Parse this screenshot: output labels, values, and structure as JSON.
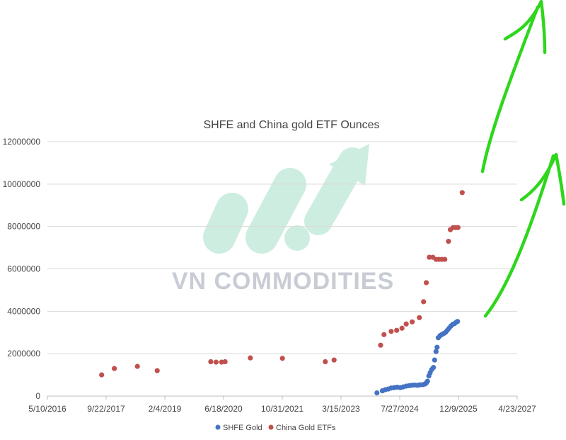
{
  "chart_data": {
    "type": "scatter",
    "title": "SHFE and China gold ETF Ounces",
    "xlabel": "",
    "ylabel": "",
    "xlim": [
      "2016-05-10",
      "2027-04-23"
    ],
    "ylim": [
      0,
      12000000
    ],
    "x_tick_labels": [
      "5/10/2016",
      "9/22/2017",
      "2/4/2019",
      "6/18/2020",
      "10/31/2021",
      "3/15/2023",
      "7/27/2024",
      "12/9/2025",
      "4/23/2027"
    ],
    "x_tick_dates": [
      "2016-05-10",
      "2017-09-22",
      "2019-02-04",
      "2020-06-18",
      "2021-10-31",
      "2023-03-15",
      "2024-07-27",
      "2025-12-09",
      "2027-04-23"
    ],
    "y_tick_values": [
      0,
      2000000,
      4000000,
      6000000,
      8000000,
      10000000,
      12000000
    ],
    "y_tick_labels": [
      "0",
      "2000000",
      "4000000",
      "6000000",
      "8000000",
      "10000000",
      "12000000"
    ],
    "grid": true,
    "legend_position": "bottom",
    "series": [
      {
        "name": "SHFE Gold",
        "color": "#4472c4",
        "points": [
          [
            "2024-01-15",
            150000
          ],
          [
            "2024-03-01",
            250000
          ],
          [
            "2024-03-25",
            300000
          ],
          [
            "2024-04-20",
            330000
          ],
          [
            "2024-05-15",
            380000
          ],
          [
            "2024-06-10",
            400000
          ],
          [
            "2024-07-05",
            420000
          ],
          [
            "2024-08-01",
            400000
          ],
          [
            "2024-08-25",
            430000
          ],
          [
            "2024-09-20",
            470000
          ],
          [
            "2024-10-15",
            490000
          ],
          [
            "2024-11-05",
            510000
          ],
          [
            "2024-11-30",
            520000
          ],
          [
            "2024-12-25",
            510000
          ],
          [
            "2025-01-15",
            530000
          ],
          [
            "2025-02-10",
            540000
          ],
          [
            "2025-02-28",
            570000
          ],
          [
            "2025-03-10",
            620000
          ],
          [
            "2025-03-20",
            700000
          ],
          [
            "2025-04-01",
            950000
          ],
          [
            "2025-04-12",
            1100000
          ],
          [
            "2025-04-25",
            1250000
          ],
          [
            "2025-05-10",
            1350000
          ],
          [
            "2025-05-20",
            1700000
          ],
          [
            "2025-06-01",
            2100000
          ],
          [
            "2025-06-10",
            2300000
          ],
          [
            "2025-06-20",
            2750000
          ],
          [
            "2025-07-05",
            2850000
          ],
          [
            "2025-07-20",
            2900000
          ],
          [
            "2025-08-05",
            2950000
          ],
          [
            "2025-08-20",
            3000000
          ],
          [
            "2025-09-05",
            3100000
          ],
          [
            "2025-09-20",
            3200000
          ],
          [
            "2025-10-05",
            3300000
          ],
          [
            "2025-10-20",
            3380000
          ],
          [
            "2025-11-05",
            3420000
          ],
          [
            "2025-11-20",
            3480000
          ],
          [
            "2025-12-01",
            3520000
          ]
        ]
      },
      {
        "name": "China Gold ETFs",
        "color": "#c0504d",
        "points": [
          [
            "2017-08-15",
            1000000
          ],
          [
            "2017-12-01",
            1300000
          ],
          [
            "2018-06-15",
            1400000
          ],
          [
            "2018-12-01",
            1200000
          ],
          [
            "2020-03-01",
            1620000
          ],
          [
            "2020-04-15",
            1600000
          ],
          [
            "2020-06-01",
            1600000
          ],
          [
            "2020-07-01",
            1620000
          ],
          [
            "2021-02-01",
            1800000
          ],
          [
            "2021-11-01",
            1780000
          ],
          [
            "2022-11-01",
            1620000
          ],
          [
            "2023-01-15",
            1700000
          ],
          [
            "2024-02-15",
            2400000
          ],
          [
            "2024-03-15",
            2900000
          ],
          [
            "2024-05-15",
            3050000
          ],
          [
            "2024-07-01",
            3100000
          ],
          [
            "2024-08-15",
            3200000
          ],
          [
            "2024-09-20",
            3400000
          ],
          [
            "2024-11-10",
            3500000
          ],
          [
            "2025-01-10",
            3700000
          ],
          [
            "2025-02-15",
            4450000
          ],
          [
            "2025-03-10",
            5350000
          ],
          [
            "2025-04-05",
            6550000
          ],
          [
            "2025-05-05",
            6550000
          ],
          [
            "2025-06-01",
            6450000
          ],
          [
            "2025-06-25",
            6450000
          ],
          [
            "2025-07-20",
            6450000
          ],
          [
            "2025-08-15",
            6450000
          ],
          [
            "2025-09-15",
            7300000
          ],
          [
            "2025-10-01",
            7850000
          ],
          [
            "2025-10-25",
            7950000
          ],
          [
            "2025-11-15",
            7950000
          ],
          [
            "2025-12-05",
            7950000
          ],
          [
            "2026-01-10",
            9600000
          ]
        ]
      }
    ]
  },
  "watermark": {
    "text": "VN COMMODITIES",
    "color": "#c8ccd4",
    "mark_color": "#9fdcc4"
  },
  "annotations": {
    "arrow_color": "#2ed61c",
    "arrow_count": 2
  }
}
